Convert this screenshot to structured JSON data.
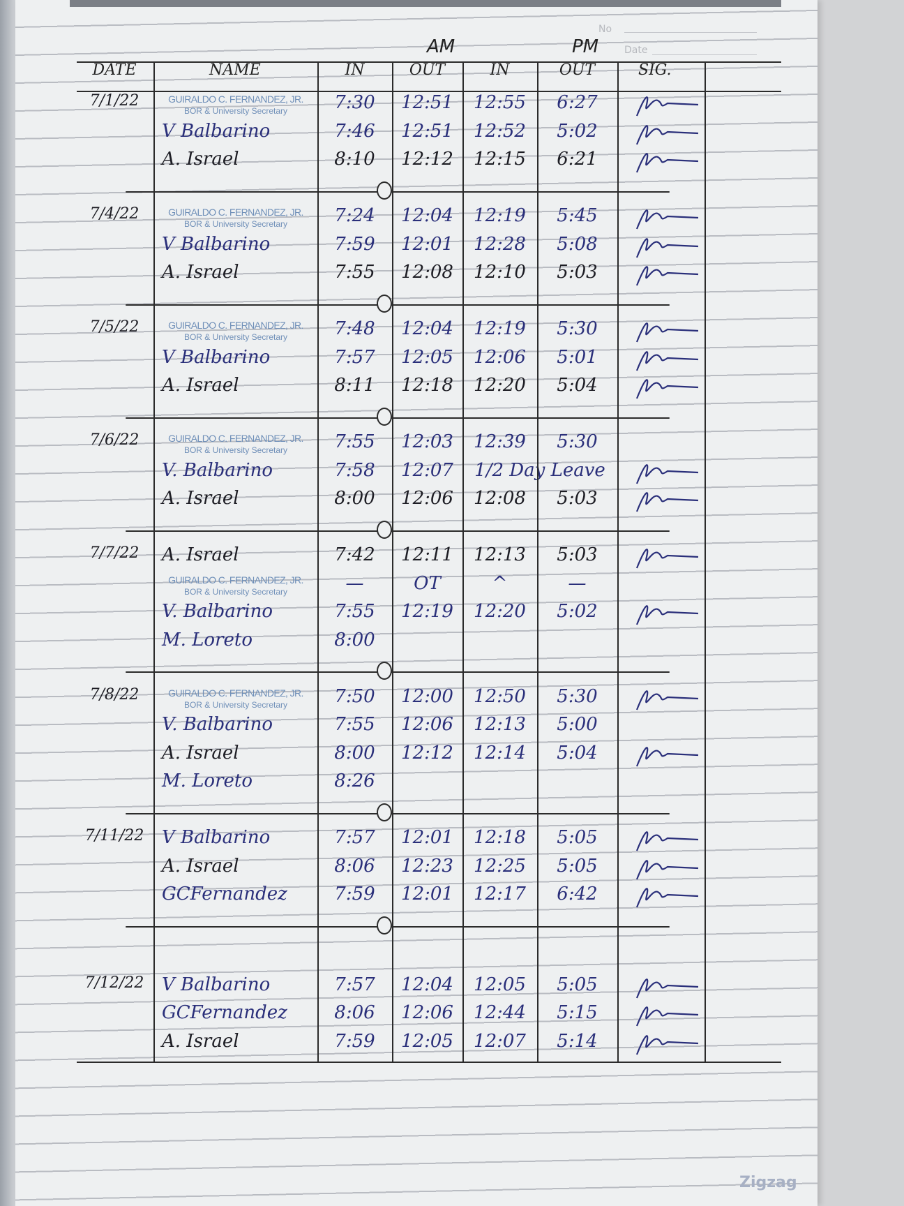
{
  "header": {
    "am_label": "AM",
    "pm_label": "PM",
    "no_label": "No",
    "date_label_printed": "Date",
    "columns": {
      "date": "DATE",
      "name": "NAME",
      "am_in": "IN",
      "am_out": "OUT",
      "pm_in": "IN",
      "pm_out": "OUT",
      "sig": "SIG."
    }
  },
  "stamp": {
    "line1": "GUIRALDO C. FERNANDEZ, JR.",
    "line2": "BOR & University Secretary"
  },
  "groups": [
    {
      "date": "7/1/22",
      "entries": [
        {
          "name": "",
          "stamp": true,
          "am_in": "7:30",
          "am_out": "12:51",
          "pm_in": "12:55",
          "pm_out": "6:27",
          "signed": true
        },
        {
          "name": "V Balbarino",
          "am_in": "7:46",
          "am_out": "12:51",
          "pm_in": "12:52",
          "pm_out": "5:02",
          "signed": true
        },
        {
          "name": "A. Israel",
          "am_in": "8:10",
          "am_out": "12:12",
          "pm_in": "12:15",
          "pm_out": "6:21",
          "signed": true
        }
      ]
    },
    {
      "date": "7/4/22",
      "entries": [
        {
          "name": "",
          "stamp": true,
          "am_in": "7:24",
          "am_out": "12:04",
          "pm_in": "12:19",
          "pm_out": "5:45",
          "signed": true
        },
        {
          "name": "V Balbarino",
          "am_in": "7:59",
          "am_out": "12:01",
          "pm_in": "12:28",
          "pm_out": "5:08",
          "signed": true
        },
        {
          "name": "A. Israel",
          "am_in": "7:55",
          "am_out": "12:08",
          "pm_in": "12:10",
          "pm_out": "5:03",
          "signed": true
        }
      ]
    },
    {
      "date": "7/5/22",
      "entries": [
        {
          "name": "",
          "stamp": true,
          "am_in": "7:48",
          "am_out": "12:04",
          "pm_in": "12:19",
          "pm_out": "5:30",
          "signed": true
        },
        {
          "name": "V Balbarino",
          "am_in": "7:57",
          "am_out": "12:05",
          "pm_in": "12:06",
          "pm_out": "5:01",
          "signed": true
        },
        {
          "name": "A. Israel",
          "am_in": "8:11",
          "am_out": "12:18",
          "pm_in": "12:20",
          "pm_out": "5:04",
          "signed": true
        }
      ]
    },
    {
      "date": "7/6/22",
      "entries": [
        {
          "name": "",
          "stamp": true,
          "am_in": "7:55",
          "am_out": "12:03",
          "pm_in": "12:39",
          "pm_out": "5:30",
          "signed": false
        },
        {
          "name": "V. Balbarino",
          "am_in": "7:58",
          "am_out": "12:07",
          "note": "1/2 Day Leave",
          "signed": true
        },
        {
          "name": "A. Israel",
          "am_in": "8:00",
          "am_out": "12:06",
          "pm_in": "12:08",
          "pm_out": "5:03",
          "signed": true
        }
      ]
    },
    {
      "date": "7/7/22",
      "entries": [
        {
          "name": "A. Israel",
          "am_in": "7:42",
          "am_out": "12:11",
          "pm_in": "12:13",
          "pm_out": "5:03",
          "signed": true
        },
        {
          "name": "",
          "stamp": true,
          "am_in": "—",
          "am_out": "OT",
          "pm_in": "^",
          "pm_out": "—",
          "signed": false
        },
        {
          "name": "V. Balbarino",
          "am_in": "7:55",
          "am_out": "12:19",
          "pm_in": "12:20",
          "pm_out": "5:02",
          "signed": true
        },
        {
          "name": "M. Loreto",
          "am_in": "8:00",
          "signed": false
        }
      ]
    },
    {
      "date": "7/8/22",
      "entries": [
        {
          "name": "",
          "stamp": true,
          "am_in": "7:50",
          "am_out": "12:00",
          "pm_in": "12:50",
          "pm_out": "5:30",
          "signed": true
        },
        {
          "name": "V. Balbarino",
          "am_in": "7:55",
          "am_out": "12:06",
          "pm_in": "12:13",
          "pm_out": "5:00",
          "signed": false
        },
        {
          "name": "A. Israel",
          "am_in": "8:00",
          "am_out": "12:12",
          "pm_in": "12:14",
          "pm_out": "5:04",
          "signed": true
        },
        {
          "name": "M. Loreto",
          "am_in": "8:26",
          "signed": false
        }
      ]
    },
    {
      "date": "7/11/22",
      "entries": [
        {
          "name": "V Balbarino",
          "am_in": "7:57",
          "am_out": "12:01",
          "pm_in": "12:18",
          "pm_out": "5:05",
          "signed": true
        },
        {
          "name": "A. Israel",
          "am_in": "8:06",
          "am_out": "12:23",
          "pm_in": "12:25",
          "pm_out": "5:05",
          "signed": true
        },
        {
          "name": "GCFernandez",
          "am_in": "7:59",
          "am_out": "12:01",
          "pm_in": "12:17",
          "pm_out": "6:42",
          "signed": true
        }
      ]
    },
    {
      "date": "7/12/22",
      "blank_before": true,
      "entries": [
        {
          "name": "V Balbarino",
          "am_in": "7:57",
          "am_out": "12:04",
          "pm_in": "12:05",
          "pm_out": "5:05",
          "signed": true
        },
        {
          "name": "GCFernandez",
          "am_in": "8:06",
          "am_out": "12:06",
          "pm_in": "12:44",
          "pm_out": "5:15",
          "signed": true
        },
        {
          "name": "A. Israel",
          "am_in": "7:59",
          "am_out": "12:05",
          "pm_in": "12:07",
          "pm_out": "5:14",
          "signed": true
        }
      ]
    }
  ],
  "watermark": "Zigzag",
  "colors": {
    "ink_blue": "#2a2f7a",
    "ink_black": "#1d1d24",
    "stamp_blue": "#6f8fb8",
    "paper": "#eef0f1"
  }
}
